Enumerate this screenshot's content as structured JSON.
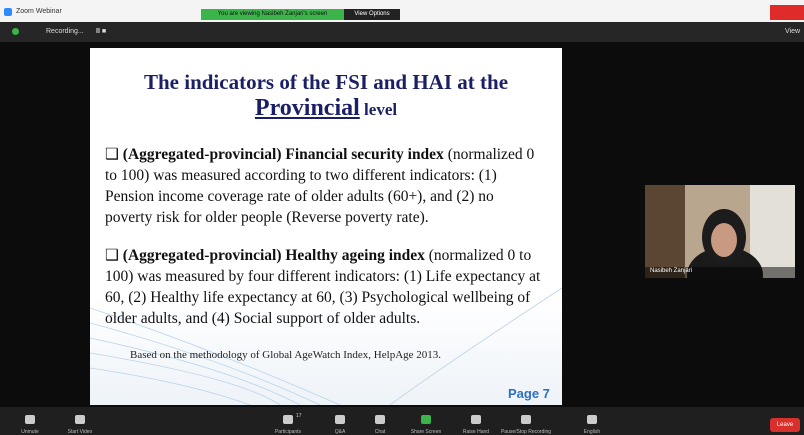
{
  "window": {
    "title": "Zoom Webinar"
  },
  "banner": {
    "text": "You are viewing Nasibeh Zanjari's screen",
    "view_options": "View Options"
  },
  "recording": {
    "status": "Recording...",
    "view": "View"
  },
  "slide": {
    "title_line1": "The indicators of the FSI and HAI at the",
    "title_emph": "Provincial",
    "title_end": "level",
    "bullets": [
      {
        "bold": "(Aggregated-provincial) Financial security index",
        "text": "(normalized 0 to 100) was measured according to two different indicators: (1) Pension income coverage rate of older adults (60+), and (2) no poverty risk for older people (Reverse poverty rate)."
      },
      {
        "bold": "(Aggregated-provincial) Healthy ageing index",
        "text": "(normalized 0 to 100) was measured by four different indicators: (1) Life expectancy at 60, (2) Healthy life expectancy at 60, (3) Psychological wellbeing of older adults, and (4) Social support of older adults."
      }
    ],
    "footnote": "Based on the methodology of Global AgeWatch Index, HelpAge 2013.",
    "page": "Page 7"
  },
  "participant": {
    "name": "Nasibeh Zanjari"
  },
  "toolbar": {
    "participants_count": "17",
    "items": [
      "Unmute",
      "Start Video",
      "Participants",
      "Q&A",
      "Chat",
      "Share Screen",
      "Raise Hand",
      "Pause/Stop Recording",
      "English"
    ],
    "leave": "Leave"
  }
}
